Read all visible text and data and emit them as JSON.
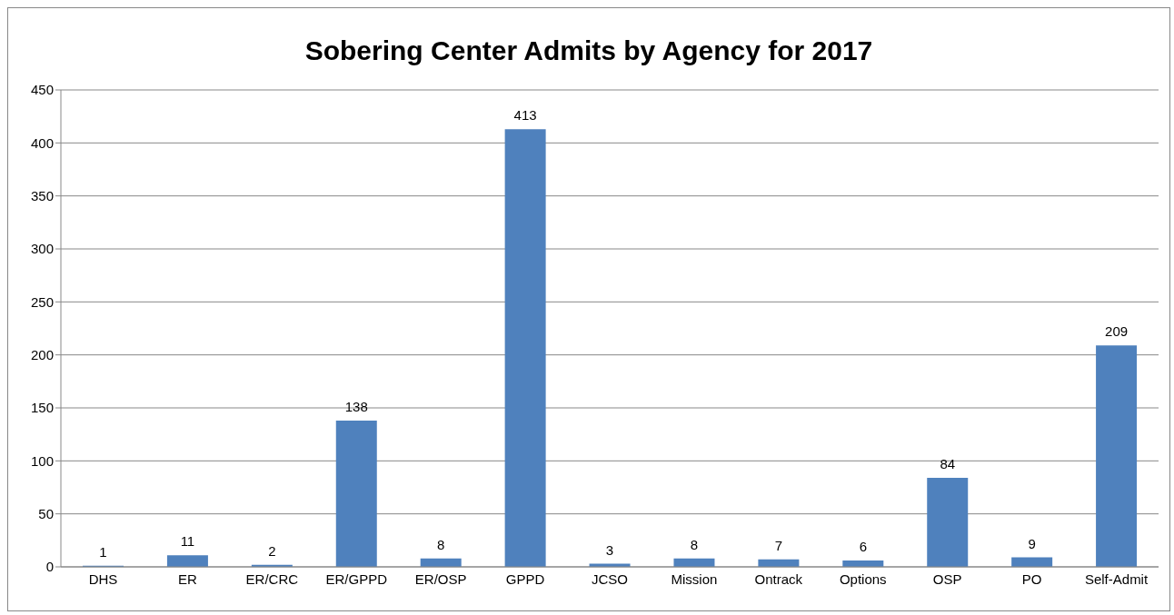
{
  "chart_data": {
    "type": "bar",
    "title": "Sobering Center Admits by Agency for 2017",
    "categories": [
      "DHS",
      "ER",
      "ER/CRC",
      "ER/GPPD",
      "ER/OSP",
      "GPPD",
      "JCSO",
      "Mission",
      "Ontrack",
      "Options",
      "OSP",
      "PO",
      "Self-Admit"
    ],
    "values": [
      1,
      11,
      2,
      138,
      8,
      413,
      3,
      8,
      7,
      6,
      84,
      9,
      209
    ],
    "color": "#4f81bd",
    "ylim": [
      0,
      450
    ],
    "yticks": [
      0,
      50,
      100,
      150,
      200,
      250,
      300,
      350,
      400,
      450
    ],
    "grid": "y",
    "data_labels": true
  }
}
